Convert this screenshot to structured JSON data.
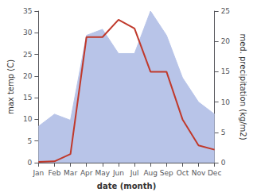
{
  "chart_data": {
    "type": "line",
    "categories": [
      "Jan",
      "Feb",
      "Mar",
      "Apr",
      "May",
      "Jun",
      "Jul",
      "Aug",
      "Sep",
      "Oct",
      "Nov",
      "Dec"
    ],
    "series": [
      {
        "type": "area",
        "color": "#b8c4e8",
        "axis": "y2",
        "values": [
          6.0,
          8.0,
          7.0,
          21.0,
          22.0,
          18.0,
          18.0,
          25.0,
          21.0,
          14.0,
          10.0,
          8.0
        ]
      },
      {
        "type": "line",
        "color": "#c0392b",
        "values": [
          0.2,
          0.3,
          2.0,
          29.0,
          29.0,
          33.0,
          31.0,
          21.0,
          21.0,
          10.0,
          4.0,
          3.0
        ]
      }
    ],
    "xlabel": "date (month)",
    "ylabel": "max temp (C)",
    "y2label": "med. precipitation (kg/m2)",
    "ylim": [
      0,
      35
    ],
    "yticks": [
      0,
      5,
      10,
      15,
      20,
      25,
      30,
      35
    ],
    "y2lim": [
      0,
      25
    ],
    "y2ticks": [
      0,
      5,
      10,
      15,
      20,
      25
    ],
    "grid": false
  }
}
